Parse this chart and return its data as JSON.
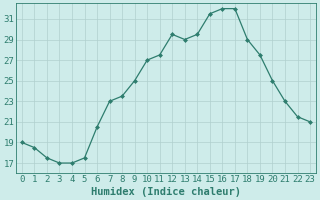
{
  "x": [
    0,
    1,
    2,
    3,
    4,
    5,
    6,
    7,
    8,
    9,
    10,
    11,
    12,
    13,
    14,
    15,
    16,
    17,
    18,
    19,
    20,
    21,
    22,
    23
  ],
  "y": [
    19,
    18.5,
    17.5,
    17,
    17,
    17.5,
    20.5,
    23,
    23.5,
    25,
    27,
    27.5,
    29.5,
    29,
    29.5,
    31.5,
    32,
    32,
    29,
    27.5,
    25,
    23,
    21.5,
    21
  ],
  "line_color": "#2e7d6e",
  "marker": "D",
  "marker_size": 2,
  "bg_color": "#ceecea",
  "grid_color": "#b0d0ce",
  "xlabel": "Humidex (Indice chaleur)",
  "xlim": [
    -0.5,
    23.5
  ],
  "ylim": [
    16,
    32.5
  ],
  "yticks": [
    17,
    19,
    21,
    23,
    25,
    27,
    29,
    31
  ],
  "xtick_labels": [
    "0",
    "1",
    "2",
    "3",
    "4",
    "5",
    "6",
    "7",
    "8",
    "9",
    "10",
    "11",
    "12",
    "13",
    "14",
    "15",
    "16",
    "17",
    "18",
    "19",
    "20",
    "21",
    "22",
    "23"
  ],
  "label_fontsize": 7.5,
  "tick_fontsize": 6.5
}
